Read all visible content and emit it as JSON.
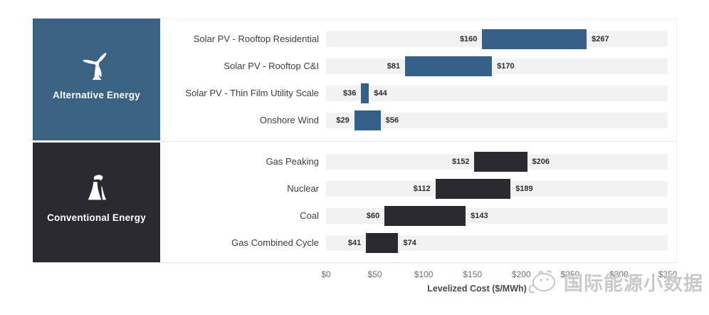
{
  "watermark": {
    "text": "国际能源小数据"
  },
  "chart_data": {
    "type": "bar",
    "orientation": "horizontal",
    "bar_style": "range",
    "xlabel": "Levelized Cost ($/MWh)",
    "xlim": [
      0,
      350
    ],
    "x_tick_values": [
      0,
      50,
      100,
      150,
      200,
      250,
      300,
      350
    ],
    "x_ticks": [
      "$0",
      "$50",
      "$100",
      "$150",
      "$200",
      "$250",
      "$300",
      "$350"
    ],
    "grid": false,
    "legend_position": "left-panels",
    "track_color": "#f2f2f2",
    "groups": [
      {
        "name": "Alternative Energy",
        "icon": "wind-turbine-icon",
        "panel_color": "#3b6183",
        "bar_color": "#35608a",
        "rows": [
          {
            "label": "Solar PV - Rooftop Residential",
            "min": 160,
            "max": 267,
            "min_label": "$160",
            "max_label": "$267"
          },
          {
            "label": "Solar PV - Rooftop C&I",
            "min": 81,
            "max": 170,
            "min_label": "$81",
            "max_label": "$170"
          },
          {
            "label": "Solar PV - Thin Film Utility Scale",
            "min": 36,
            "max": 44,
            "min_label": "$36",
            "max_label": "$44"
          },
          {
            "label": "Onshore Wind",
            "min": 29,
            "max": 56,
            "min_label": "$29",
            "max_label": "$56"
          }
        ]
      },
      {
        "name": "Conventional Energy",
        "icon": "cooling-tower-icon",
        "panel_color": "#2b2a31",
        "bar_color": "#2b2a31",
        "rows": [
          {
            "label": "Gas Peaking",
            "min": 152,
            "max": 206,
            "min_label": "$152",
            "max_label": "$206"
          },
          {
            "label": "Nuclear",
            "min": 112,
            "max": 189,
            "min_label": "$112",
            "max_label": "$189"
          },
          {
            "label": "Coal",
            "min": 60,
            "max": 143,
            "min_label": "$60",
            "max_label": "$143"
          },
          {
            "label": "Gas Combined Cycle",
            "min": 41,
            "max": 74,
            "min_label": "$41",
            "max_label": "$74"
          }
        ]
      }
    ]
  }
}
